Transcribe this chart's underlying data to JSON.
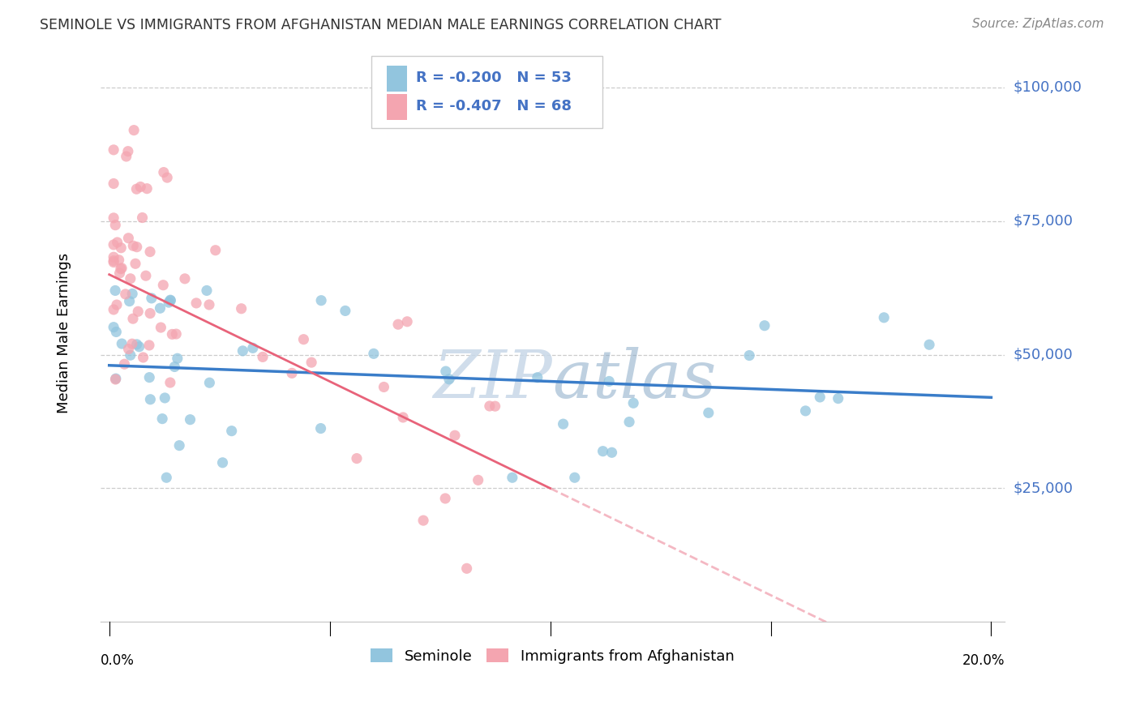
{
  "title": "SEMINOLE VS IMMIGRANTS FROM AFGHANISTAN MEDIAN MALE EARNINGS CORRELATION CHART",
  "source": "Source: ZipAtlas.com",
  "ylabel": "Median Male Earnings",
  "xlim": [
    0.0,
    0.2
  ],
  "ylim": [
    0,
    108000
  ],
  "legend1_r": "-0.200",
  "legend1_n": "53",
  "legend2_r": "-0.407",
  "legend2_n": "68",
  "blue_color": "#92C5DE",
  "pink_color": "#F4A5B0",
  "blue_line_color": "#3A7DC9",
  "pink_line_color": "#E8637A",
  "ytick_color": "#4472c4",
  "watermark_color": "#C8D8E8",
  "grid_color": "#CCCCCC",
  "title_color": "#333333",
  "source_color": "#888888"
}
